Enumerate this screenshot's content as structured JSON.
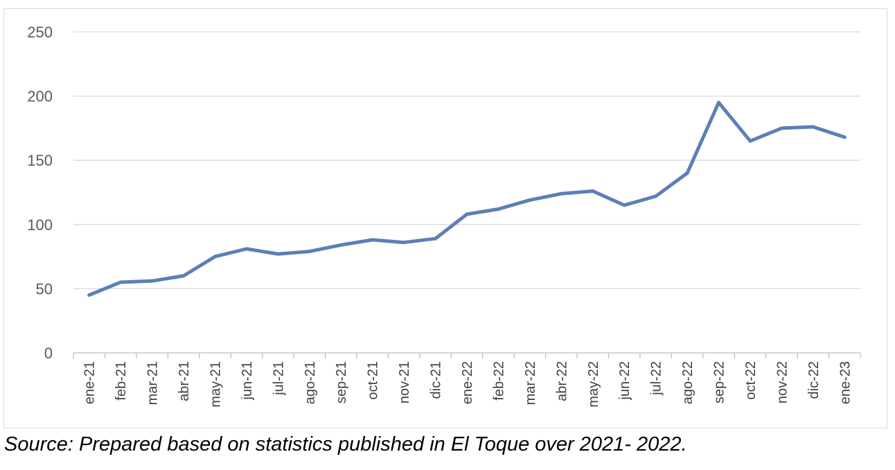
{
  "chart_data": {
    "type": "line",
    "title": "",
    "xlabel": "",
    "ylabel": "",
    "ylim": [
      0,
      250
    ],
    "yticks": [
      0,
      50,
      100,
      150,
      200,
      250
    ],
    "grid": true,
    "legend": "none",
    "categories": [
      "ene-21",
      "feb-21",
      "mar-21",
      "abr-21",
      "may-21",
      "jun-21",
      "jul-21",
      "ago-21",
      "sep-21",
      "oct-21",
      "nov-21",
      "dic-21",
      "ene-22",
      "feb-22",
      "mar-22",
      "abr-22",
      "may-22",
      "jun-22",
      "jul-22",
      "ago-22",
      "sep-22",
      "oct-22",
      "nov-22",
      "dic-22",
      "ene-23"
    ],
    "series": [
      {
        "values": [
          45,
          55,
          56,
          60,
          75,
          81,
          77,
          79,
          84,
          88,
          86,
          89,
          108,
          112,
          119,
          124,
          126,
          115,
          122,
          140,
          195,
          165,
          175,
          176,
          168
        ]
      }
    ],
    "colors": {
      "line": "#5b7fb8",
      "grid": "#d9d9d9",
      "axis": "#bfbfbf"
    }
  },
  "caption": "Source: Prepared based on statistics published in El Toque over 2021- 2022."
}
